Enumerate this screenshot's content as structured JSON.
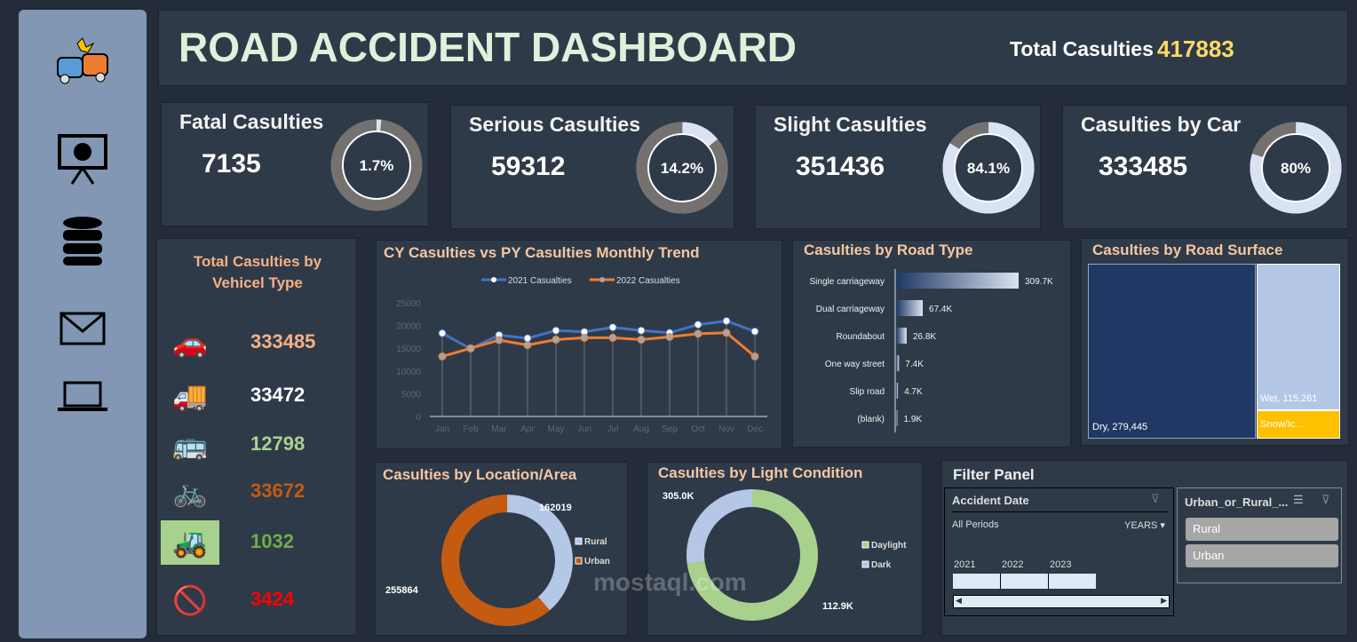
{
  "header": {
    "title": "ROAD ACCIDENT DASHBOARD",
    "total_label": "Total Casulties",
    "total_value": "417883"
  },
  "sidebar": {
    "icons": [
      "car-crash-icon",
      "presentation-chart-icon",
      "database-icon",
      "mail-icon",
      "laptop-icon"
    ]
  },
  "kpis": [
    {
      "title": "Fatal Casulties",
      "value": "7135",
      "pct": "1.7%",
      "fraction": 0.017
    },
    {
      "title": "Serious Casulties",
      "value": "59312",
      "pct": "14.2%",
      "fraction": 0.142
    },
    {
      "title": "Slight Casulties",
      "value": "351436",
      "pct": "84.1%",
      "fraction": 0.841
    },
    {
      "title": "Casulties by Car",
      "value": "333485",
      "pct": "80%",
      "fraction": 0.8
    }
  ],
  "vehicle": {
    "title": "Total Casulties by Vehicel Type",
    "items": [
      {
        "icon": "car-icon",
        "value": "333485",
        "color": "#f4b183"
      },
      {
        "icon": "truck-icon",
        "value": "33472",
        "color": "#ffffff"
      },
      {
        "icon": "bus-icon",
        "value": "12798",
        "color": "#a9d18e"
      },
      {
        "icon": "bicycle-icon",
        "value": "33672",
        "color": "#c55a11"
      },
      {
        "icon": "tractor-icon",
        "value": "1032",
        "color": "#70ad47"
      },
      {
        "icon": "no-entry-icon",
        "value": "3424",
        "color": "#ff0000"
      }
    ]
  },
  "chart_data": [
    {
      "type": "line",
      "title": "CY Casulties vs PY Casulties Monthly Trend",
      "categories": [
        "Jan",
        "Feb",
        "Mar",
        "Apr",
        "May",
        "Jun",
        "Jul",
        "Aug",
        "Sep",
        "Oct",
        "Nov",
        "Dec"
      ],
      "ylim": [
        0,
        25000
      ],
      "yticks": [
        "0",
        "5000",
        "10000",
        "15000",
        "20000",
        "25000"
      ],
      "legend": "top",
      "series": [
        {
          "name": "2021 Casualties",
          "color": "#4472c4",
          "values": [
            18300,
            14900,
            17900,
            17200,
            18900,
            18600,
            19600,
            18900,
            18400,
            20200,
            21000,
            18700
          ]
        },
        {
          "name": "2022 Casualties",
          "color": "#ed7d31",
          "values": [
            13200,
            15000,
            16800,
            15700,
            16900,
            17300,
            17300,
            16900,
            17500,
            18200,
            18400,
            13200
          ]
        }
      ]
    },
    {
      "type": "bar",
      "title": "Casulties by Road Type",
      "categories": [
        "Single carriageway",
        "Dual carriageway",
        "Roundabout",
        "One way street",
        "Slip road",
        "(blank)"
      ],
      "values": [
        309.7,
        67.4,
        26.8,
        7.4,
        4.7,
        1.9
      ],
      "labels": [
        "309.7K",
        "67.4K",
        "26.8K",
        "7.4K",
        "4.7K",
        "1.9K"
      ]
    },
    {
      "type": "treemap",
      "title": "Casulties by Road Surface",
      "items": [
        {
          "label": "Dry, 279,445",
          "value": 279445,
          "color": "#1f3864"
        },
        {
          "label": "Wet, 115,261",
          "value": 115261,
          "color": "#b4c7e7"
        },
        {
          "label": "Snow/Ic...",
          "value": 23177,
          "color": "#ffc000"
        }
      ]
    },
    {
      "type": "pie",
      "title": "Casulties by Location/Area",
      "items": [
        {
          "name": "Rural",
          "value": 162019,
          "label": "162019",
          "color": "#b4c7e7"
        },
        {
          "name": "Urban",
          "value": 255864,
          "label": "255864",
          "color": "#c55a11"
        }
      ]
    },
    {
      "type": "pie",
      "title": "Casulties by Light Condition",
      "items": [
        {
          "name": "Daylight",
          "value": 305.0,
          "label": "305.0K",
          "color": "#a9d18e"
        },
        {
          "name": "Dark",
          "value": 112.9,
          "label": "112.9K",
          "color": "#b4c7e7"
        }
      ]
    }
  ],
  "filter": {
    "title": "Filter Panel",
    "date": {
      "title": "Accident Date",
      "periods": "All Periods",
      "level": "YEARS",
      "years": [
        "2021",
        "2022",
        "2023"
      ]
    },
    "area": {
      "title": "Urban_or_Rural_...",
      "options": [
        "Rural",
        "Urban"
      ]
    }
  },
  "watermark": "mostaql.com"
}
